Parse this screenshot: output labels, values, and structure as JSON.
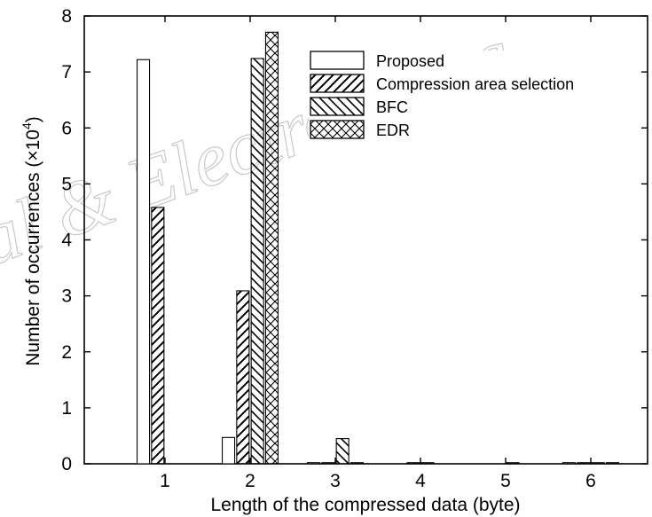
{
  "watermark": {
    "text": "al & Electron Eng"
  },
  "chart_data": {
    "type": "bar",
    "xlabel": "Length of the compressed data (byte)",
    "ylabel": "Number of occurrences (×10",
    "ylabel_exponent": "4",
    "ylabel_suffix": ")",
    "ylim": [
      0,
      8
    ],
    "categories": [
      "1",
      "2",
      "3",
      "4",
      "5",
      "6"
    ],
    "yticks": [
      "0",
      "1",
      "2",
      "3",
      "4",
      "5",
      "6",
      "7",
      "8"
    ],
    "grid": false,
    "legend_position": "top-right",
    "series": [
      {
        "name": "Proposed",
        "pattern": "none",
        "values": [
          7.22,
          0.47,
          0.02,
          0.0,
          0.0,
          0.02
        ]
      },
      {
        "name": "Compression area selection",
        "pattern": "diag-up",
        "values": [
          4.58,
          3.09,
          0.02,
          0.02,
          0.0,
          0.02
        ]
      },
      {
        "name": "BFC",
        "pattern": "diag-down",
        "values": [
          0.0,
          7.24,
          0.45,
          0.02,
          0.02,
          0.02
        ]
      },
      {
        "name": "EDR",
        "pattern": "cross",
        "values": [
          0.0,
          7.71,
          0.02,
          0.0,
          0.0,
          0.02
        ]
      }
    ]
  }
}
